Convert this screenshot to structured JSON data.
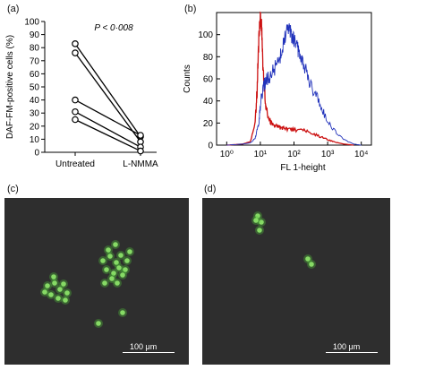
{
  "panels": {
    "a": {
      "label": "(a)"
    },
    "b": {
      "label": "(b)"
    },
    "c": {
      "label": "(c)",
      "scale_label": "100 μm"
    },
    "d": {
      "label": "(d)",
      "scale_label": "100 μm"
    }
  },
  "chart_data": [
    {
      "type": "line",
      "panel": "(a)",
      "title": "",
      "annotation": "P < 0·008",
      "ylabel": "DAF-FM-positive cells (%)",
      "xlabel": "",
      "categories": [
        "Untreated",
        "L-NMMA"
      ],
      "ylim": [
        0,
        100
      ],
      "yticks": [
        0,
        10,
        20,
        30,
        40,
        50,
        60,
        70,
        80,
        90,
        100
      ],
      "series": [
        {
          "values": [
            83,
            12
          ]
        },
        {
          "values": [
            76,
            8
          ]
        },
        {
          "values": [
            40,
            13
          ]
        },
        {
          "values": [
            31,
            4
          ]
        },
        {
          "values": [
            25,
            1
          ]
        }
      ],
      "marker": "open-circle",
      "color": "#000000"
    },
    {
      "type": "line",
      "panel": "(b)",
      "title": "",
      "xlabel": "FL 1-height",
      "ylabel": "Counts",
      "xscale": "log",
      "xlim": [
        0.5,
        20000
      ],
      "ylim": [
        0,
        120
      ],
      "yticks": [
        0,
        20,
        40,
        60,
        80,
        100
      ],
      "xticks": [
        "10⁰",
        "10¹",
        "10²",
        "10³",
        "10⁴"
      ],
      "series": [
        {
          "color": "#cc1111",
          "x": [
            1,
            3,
            5,
            7,
            8,
            9,
            10,
            11,
            12,
            14,
            17,
            22,
            30,
            40,
            60,
            100,
            200,
            400,
            800,
            1500,
            3000,
            6000
          ],
          "y": [
            0,
            1,
            3,
            20,
            50,
            95,
            118,
            105,
            70,
            40,
            25,
            19,
            17,
            16,
            15,
            14,
            13,
            10,
            6,
            3,
            1,
            0
          ]
        },
        {
          "color": "#2233bb",
          "x": [
            1,
            3,
            5,
            7,
            9,
            10,
            12,
            15,
            20,
            30,
            40,
            50,
            60,
            70,
            80,
            100,
            130,
            160,
            200,
            300,
            500,
            800,
            1500,
            3000,
            6000,
            10000
          ],
          "y": [
            0,
            1,
            2,
            6,
            20,
            36,
            52,
            58,
            64,
            72,
            82,
            95,
            103,
            108,
            101,
            95,
            87,
            82,
            72,
            56,
            42,
            28,
            14,
            5,
            1,
            0
          ]
        }
      ]
    }
  ],
  "micrographs": {
    "c": {
      "cells": [
        [
          110,
          70
        ],
        [
          118,
          65
        ],
        [
          125,
          72
        ],
        [
          130,
          64
        ],
        [
          137,
          70
        ],
        [
          114,
          80
        ],
        [
          122,
          84
        ],
        [
          128,
          78
        ],
        [
          135,
          80
        ],
        [
          120,
          90
        ],
        [
          132,
          86
        ],
        [
          116,
          58
        ],
        [
          140,
          60
        ],
        [
          112,
          95
        ],
        [
          126,
          95
        ],
        [
          124,
          52
        ],
        [
          48,
          98
        ],
        [
          56,
          95
        ],
        [
          62,
          102
        ],
        [
          52,
          108
        ],
        [
          60,
          112
        ],
        [
          70,
          106
        ],
        [
          45,
          105
        ],
        [
          66,
          96
        ],
        [
          55,
          88
        ],
        [
          68,
          114
        ],
        [
          132,
          128
        ],
        [
          105,
          140
        ]
      ]
    },
    "d": {
      "cells": [
        [
          62,
          20
        ],
        [
          66,
          27
        ],
        [
          60,
          25
        ],
        [
          64,
          36
        ],
        [
          118,
          68
        ],
        [
          122,
          74
        ]
      ]
    }
  }
}
